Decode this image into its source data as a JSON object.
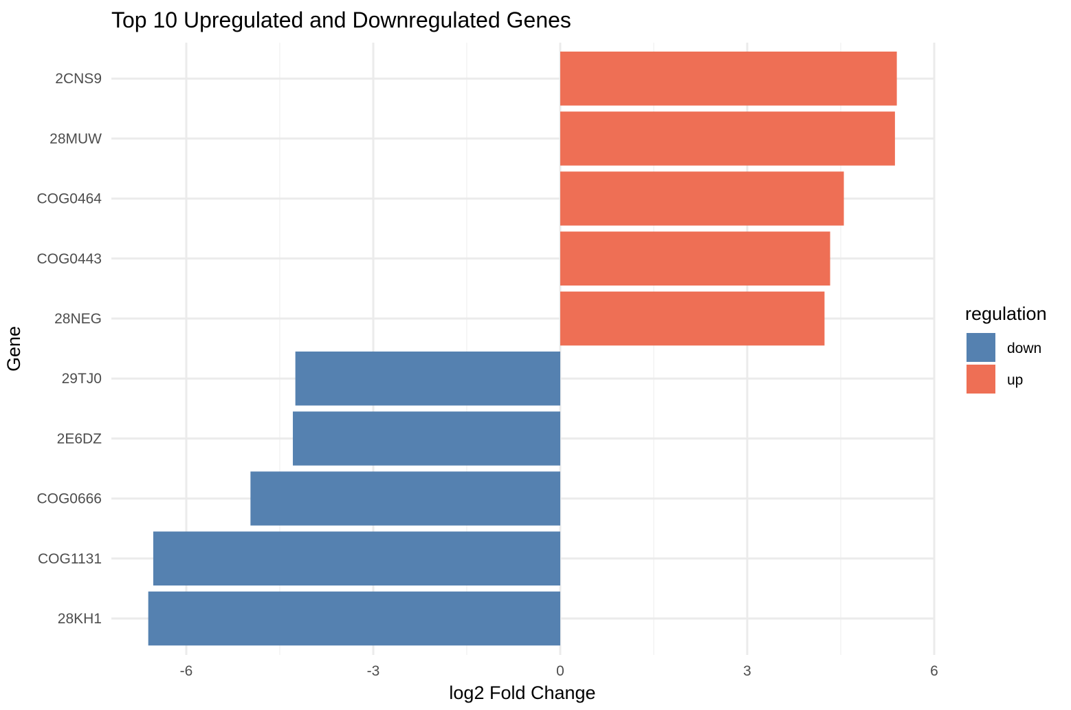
{
  "chart_data": {
    "type": "bar",
    "orientation": "horizontal",
    "title": "Top 10 Upregulated and Downregulated Genes",
    "xlabel": "log2 Fold Change",
    "ylabel": "Gene",
    "xlim": [
      -7.0,
      6.0
    ],
    "xticks": [
      -6,
      -3,
      0,
      3,
      6
    ],
    "xtick_labels": [
      "-6",
      "-3",
      "0",
      "3",
      "6"
    ],
    "grid": true,
    "legend": {
      "title": "regulation",
      "position": "right",
      "entries": [
        {
          "label": "down",
          "color": "#5581b0"
        },
        {
          "label": "up",
          "color": "#ee6f55"
        }
      ]
    },
    "categories": [
      "2CNS9",
      "28MUW",
      "COG0464",
      "COG0443",
      "28NEG",
      "29TJ0",
      "2E6DZ",
      "COG0666",
      "COG1131",
      "28KH1"
    ],
    "values": [
      5.4,
      5.37,
      4.55,
      4.33,
      4.24,
      -4.25,
      -4.29,
      -4.97,
      -6.53,
      -6.61
    ],
    "regulation": [
      "up",
      "up",
      "up",
      "up",
      "up",
      "down",
      "down",
      "down",
      "down",
      "down"
    ]
  }
}
